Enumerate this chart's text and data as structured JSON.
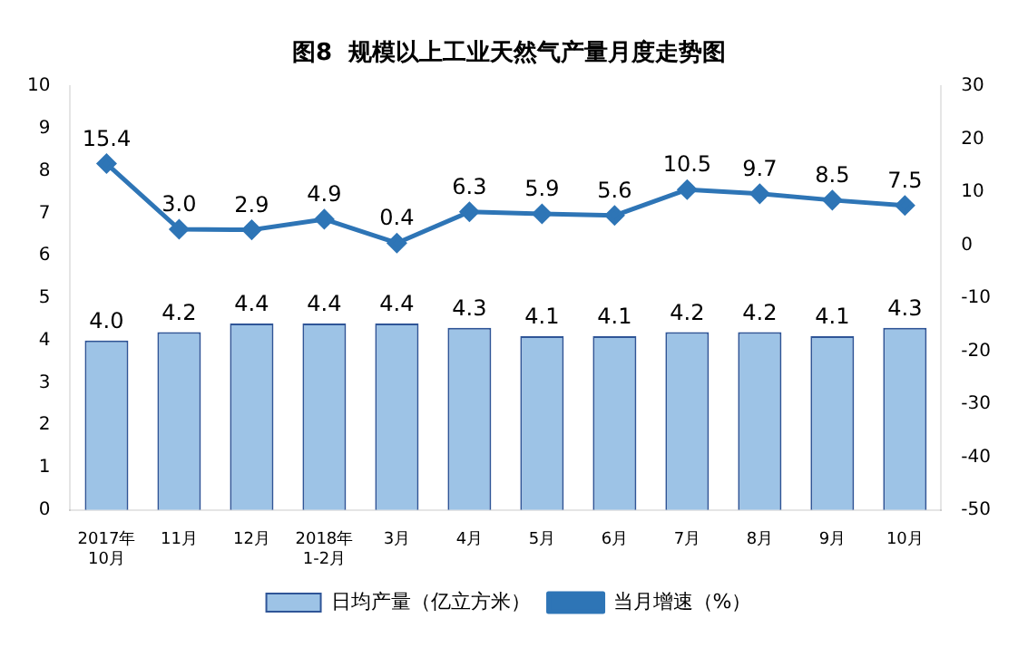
{
  "chart_data": {
    "type": "bar",
    "title": "图8  规模以上工业天然气产量月度走势图",
    "categories": [
      "2017年\n10月",
      "11月",
      "12月",
      "2018年\n1-2月",
      "3月",
      "4月",
      "5月",
      "6月",
      "7月",
      "8月",
      "9月",
      "10月"
    ],
    "series": [
      {
        "name": "日均产量（亿立方米）",
        "color": "#9dc3e6",
        "values": [
          4.0,
          4.2,
          4.4,
          4.4,
          4.4,
          4.3,
          4.1,
          4.1,
          4.2,
          4.2,
          4.1,
          4.3
        ],
        "value_labels": [
          "4.0",
          "4.2",
          "4.4",
          "4.4",
          "4.4",
          "4.3",
          "4.1",
          "4.1",
          "4.2",
          "4.2",
          "4.1",
          "4.3"
        ]
      },
      {
        "name": "当月增速（%）",
        "type": "line",
        "axis": "y2",
        "color": "#2e75b6",
        "values": [
          15.4,
          3.0,
          2.9,
          4.9,
          0.4,
          6.3,
          5.9,
          5.6,
          10.5,
          9.7,
          8.5,
          7.5
        ],
        "value_labels": [
          "15.4",
          "3.0",
          "2.9",
          "4.9",
          "0.4",
          "6.3",
          "5.9",
          "5.6",
          "10.5",
          "9.7",
          "8.5",
          "7.5"
        ]
      }
    ],
    "ylim": [
      0,
      10
    ],
    "yticks": [
      0,
      1,
      2,
      3,
      4,
      5,
      6,
      7,
      8,
      9,
      10
    ],
    "y2lim": [
      -50,
      30
    ],
    "y2ticks": [
      -50,
      -40,
      -30,
      -20,
      -10,
      0,
      10,
      20,
      30
    ],
    "legend": "bottom",
    "marker": "diamond",
    "grid": false
  }
}
